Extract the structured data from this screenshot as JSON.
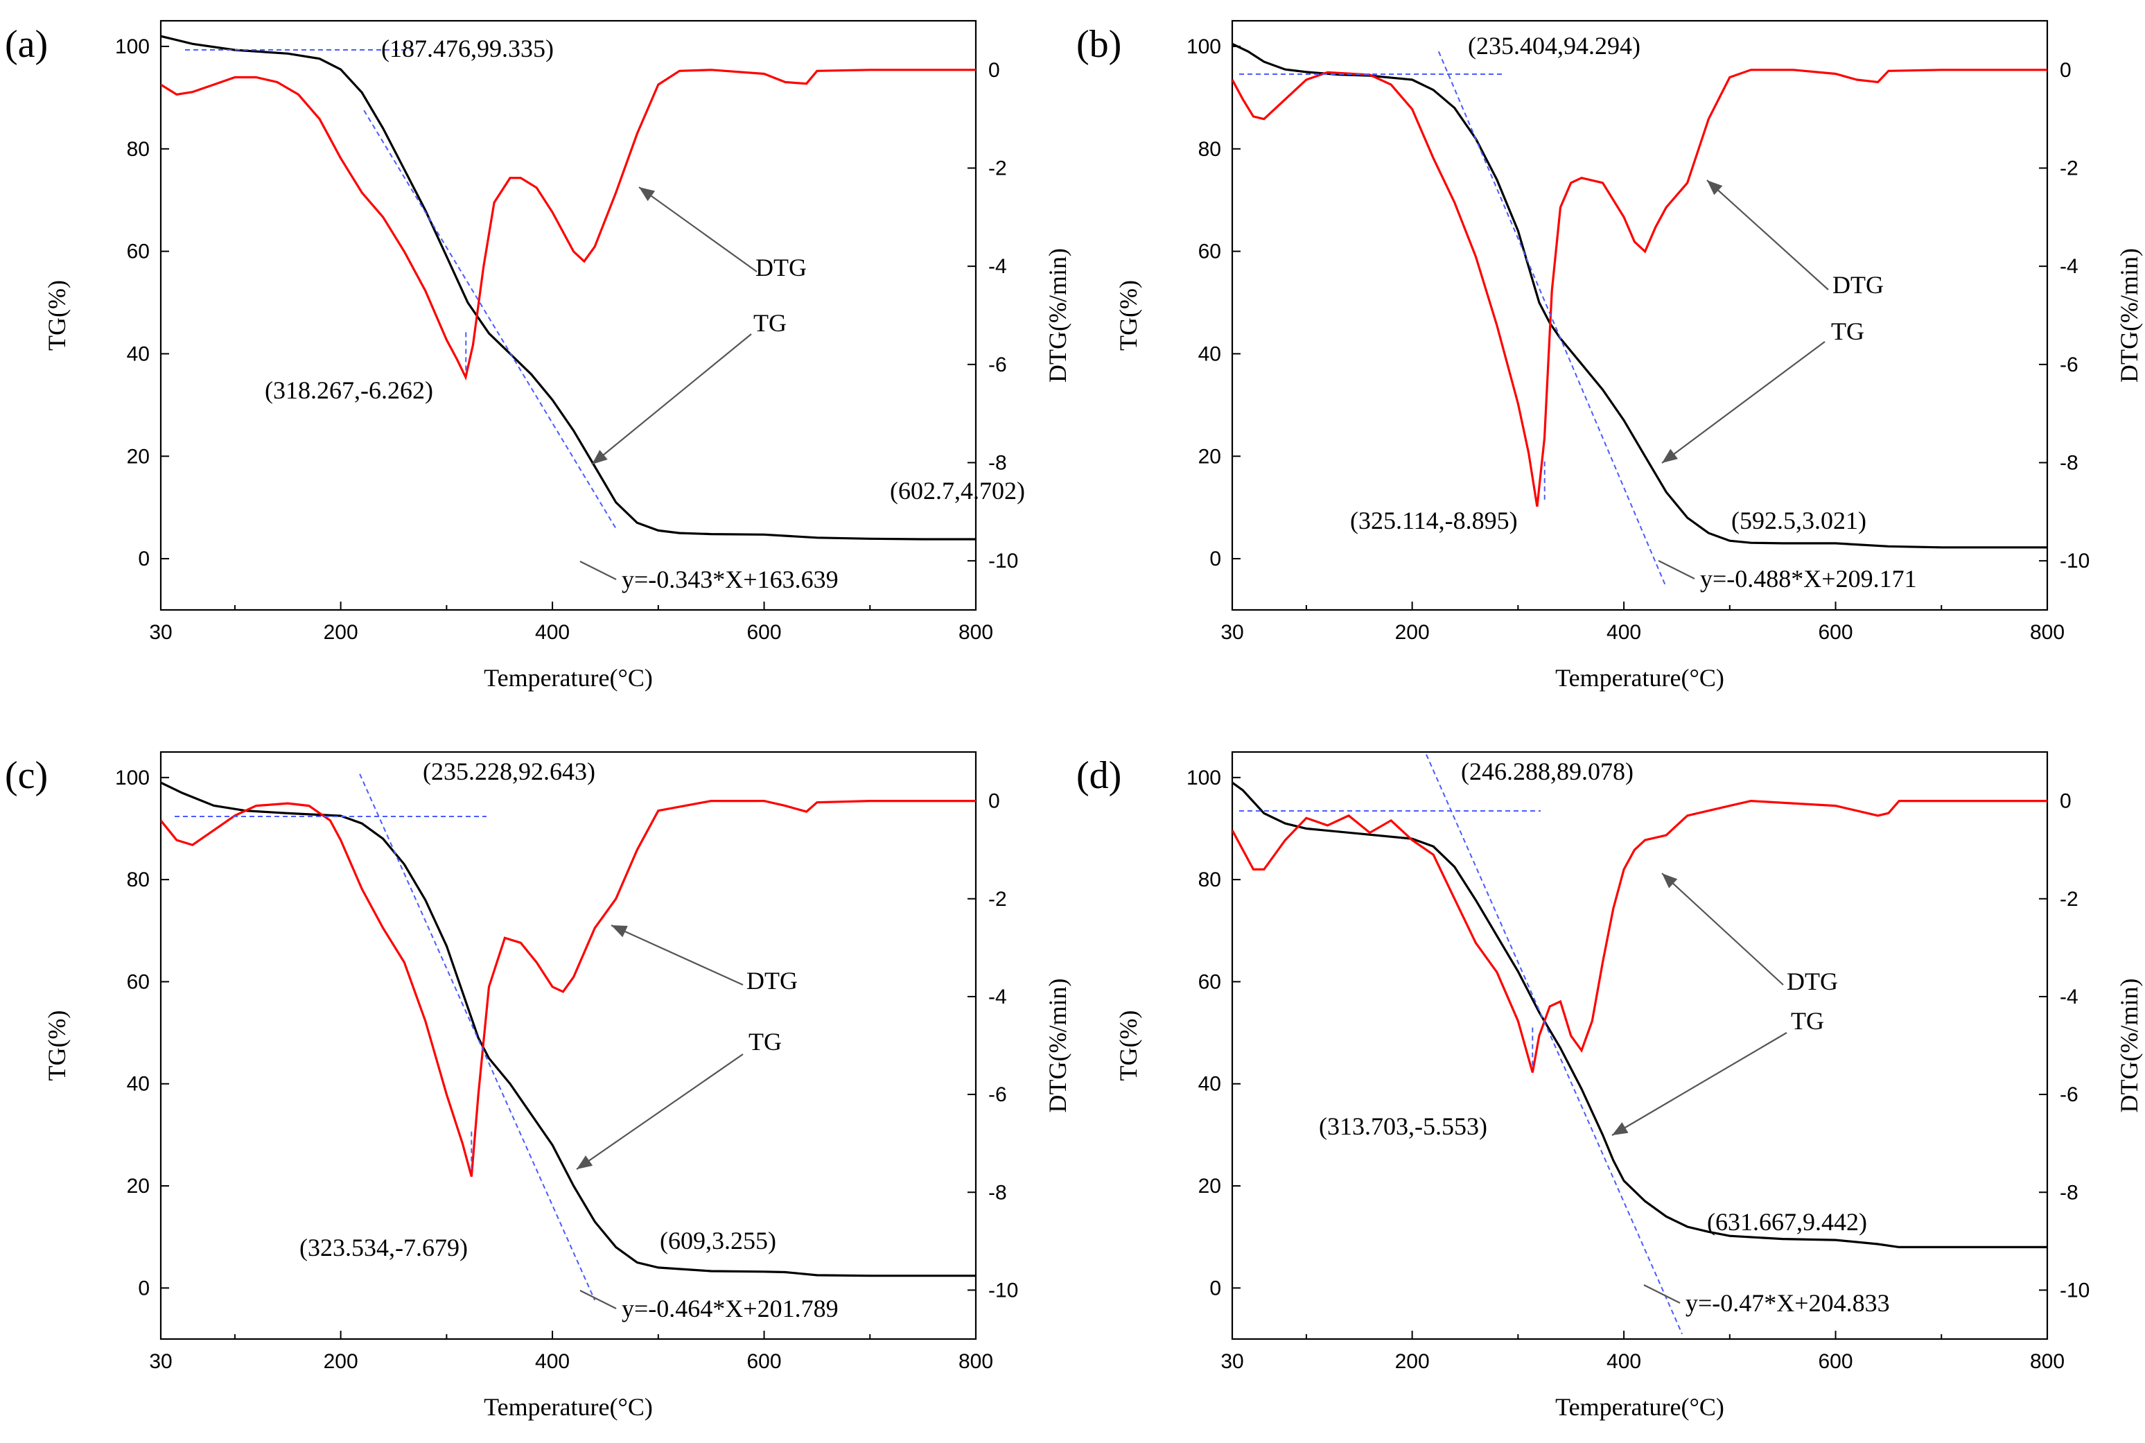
{
  "colors": {
    "tg": "#000000",
    "dtg": "#ff0000",
    "fit": "#4b5cff",
    "arrow": "#555555"
  },
  "chart_data": [
    {
      "type": "line",
      "panel_label": "(a)",
      "xlabel": "Temperature(°C)",
      "ylabel": "TG(%)",
      "y2label": "DTG(%/min)",
      "xlim": [
        30,
        800
      ],
      "ylim": [
        -10,
        105
      ],
      "y2lim": [
        -11,
        1
      ],
      "x_ticks": [
        30,
        200,
        400,
        600,
        800
      ],
      "y_ticks": [
        0,
        20,
        40,
        60,
        80,
        100
      ],
      "y2_ticks": [
        0,
        -2,
        -4,
        -6,
        -8,
        -10
      ],
      "series": [
        {
          "name": "TG",
          "axis": "left",
          "x": [
            30,
            60,
            100,
            150,
            180,
            200,
            220,
            240,
            260,
            280,
            300,
            320,
            340,
            360,
            380,
            400,
            420,
            440,
            460,
            480,
            500,
            520,
            550,
            600,
            650,
            700,
            750,
            800
          ],
          "y": [
            102,
            100.5,
            99.3,
            98.6,
            97.6,
            95.5,
            91,
            84,
            76,
            68,
            59,
            50,
            44,
            40,
            36,
            31,
            25,
            18,
            11,
            7,
            5.5,
            5,
            4.8,
            4.7,
            4.1,
            3.9,
            3.8,
            3.8
          ]
        },
        {
          "name": "DTG",
          "axis": "right",
          "x": [
            30,
            45,
            60,
            80,
            100,
            120,
            140,
            160,
            180,
            200,
            220,
            240,
            260,
            280,
            300,
            310,
            318,
            325,
            335,
            345,
            360,
            370,
            385,
            400,
            420,
            430,
            440,
            460,
            480,
            500,
            520,
            550,
            600,
            620,
            640,
            650,
            700,
            800
          ],
          "y": [
            -0.3,
            -0.5,
            -0.45,
            -0.3,
            -0.15,
            -0.15,
            -0.25,
            -0.5,
            -1.0,
            -1.8,
            -2.5,
            -3.0,
            -3.7,
            -4.5,
            -5.5,
            -5.9,
            -6.26,
            -5.6,
            -4.0,
            -2.7,
            -2.2,
            -2.2,
            -2.4,
            -2.9,
            -3.7,
            -3.9,
            -3.6,
            -2.5,
            -1.3,
            -0.3,
            -0.02,
            0.0,
            -0.08,
            -0.25,
            -0.28,
            -0.02,
            0.0,
            0.0
          ]
        },
        {
          "name": "fit",
          "axis": "left",
          "x": [
            222,
            460
          ],
          "y": [
            87.5,
            5.9
          ]
        }
      ],
      "annotations": [
        {
          "text": "(187.476,99.335)",
          "x": 187.476,
          "y": 99.335,
          "axis": "left"
        },
        {
          "text": "(318.267,-6.262)",
          "x": 318.267,
          "y": -6.262,
          "axis": "right"
        },
        {
          "text": "(602.7,4.702)",
          "x": 602.7,
          "y": 4.702,
          "axis": "left"
        },
        {
          "text": "y=-0.343*X+163.639"
        },
        {
          "text": "DTG"
        },
        {
          "text": "TG"
        }
      ]
    },
    {
      "type": "line",
      "panel_label": "(b)",
      "xlabel": "Temperature(°C)",
      "ylabel": "TG(%)",
      "y2label": "DTG(%/min)",
      "xlim": [
        30,
        800
      ],
      "ylim": [
        -10,
        105
      ],
      "y2lim": [
        -11,
        1
      ],
      "x_ticks": [
        30,
        200,
        400,
        600,
        800
      ],
      "y_ticks": [
        0,
        20,
        40,
        60,
        80,
        100
      ],
      "y2_ticks": [
        0,
        -2,
        -4,
        -6,
        -8,
        -10
      ],
      "series": [
        {
          "name": "TG",
          "axis": "left",
          "x": [
            30,
            45,
            60,
            80,
            100,
            130,
            160,
            200,
            220,
            240,
            260,
            280,
            300,
            310,
            320,
            330,
            340,
            360,
            380,
            400,
            420,
            440,
            460,
            480,
            500,
            520,
            550,
            600,
            650,
            700,
            800
          ],
          "y": [
            100.5,
            99,
            97,
            95.5,
            95,
            94.5,
            94.3,
            93.5,
            91.5,
            88,
            82,
            74,
            64,
            57,
            50,
            46,
            43,
            38,
            33,
            27,
            20,
            13,
            8,
            5,
            3.5,
            3.1,
            3.0,
            3.0,
            2.4,
            2.2,
            2.2
          ]
        },
        {
          "name": "DTG",
          "axis": "right",
          "x": [
            30,
            40,
            50,
            60,
            80,
            100,
            120,
            160,
            180,
            200,
            220,
            240,
            260,
            280,
            300,
            310,
            318,
            325,
            332,
            340,
            350,
            360,
            380,
            400,
            410,
            420,
            430,
            440,
            460,
            480,
            500,
            520,
            560,
            600,
            620,
            640,
            650,
            700,
            800
          ],
          "y": [
            -0.2,
            -0.6,
            -0.95,
            -1.0,
            -0.6,
            -0.2,
            -0.05,
            -0.1,
            -0.3,
            -0.8,
            -1.8,
            -2.7,
            -3.8,
            -5.2,
            -6.8,
            -7.8,
            -8.895,
            -7.5,
            -4.5,
            -2.8,
            -2.3,
            -2.2,
            -2.3,
            -3.0,
            -3.5,
            -3.7,
            -3.2,
            -2.8,
            -2.3,
            -1.0,
            -0.15,
            0.0,
            0.0,
            -0.08,
            -0.2,
            -0.25,
            -0.02,
            0.0,
            0.0
          ]
        },
        {
          "name": "fit",
          "axis": "left",
          "x": [
            225,
            440
          ],
          "y": [
            99,
            -5.6
          ]
        }
      ],
      "annotations": [
        {
          "text": "(235.404,94.294)",
          "x": 235.404,
          "y": 94.294,
          "axis": "left"
        },
        {
          "text": "(325.114,-8.895)",
          "x": 325.114,
          "y": -8.895,
          "axis": "right"
        },
        {
          "text": "(592.5,3.021)",
          "x": 592.5,
          "y": 3.021,
          "axis": "left"
        },
        {
          "text": "y=-0.488*X+209.171"
        },
        {
          "text": "DTG"
        },
        {
          "text": "TG"
        }
      ]
    },
    {
      "type": "line",
      "panel_label": "(c)",
      "xlabel": "Temperature(°C)",
      "ylabel": "TG(%)",
      "y2label": "DTG(%/min)",
      "xlim": [
        30,
        800
      ],
      "ylim": [
        -10,
        105
      ],
      "y2lim": [
        -11,
        1
      ],
      "x_ticks": [
        30,
        200,
        400,
        600,
        800
      ],
      "y_ticks": [
        0,
        20,
        40,
        60,
        80,
        100
      ],
      "y2_ticks": [
        0,
        -2,
        -4,
        -6,
        -8,
        -10
      ],
      "series": [
        {
          "name": "TG",
          "axis": "left",
          "x": [
            30,
            50,
            80,
            110,
            150,
            200,
            220,
            240,
            260,
            280,
            300,
            320,
            330,
            340,
            360,
            380,
            400,
            420,
            440,
            460,
            480,
            500,
            550,
            600,
            620,
            650,
            700,
            800
          ],
          "y": [
            99,
            97,
            94.5,
            93.5,
            93,
            92.5,
            91,
            88,
            83,
            76,
            67,
            55,
            49,
            45,
            40,
            34,
            28,
            20,
            13,
            8,
            5,
            4,
            3.3,
            3.2,
            3.1,
            2.5,
            2.4,
            2.4
          ]
        },
        {
          "name": "DTG",
          "axis": "right",
          "x": [
            30,
            45,
            60,
            80,
            100,
            120,
            150,
            170,
            190,
            200,
            220,
            240,
            260,
            280,
            300,
            315,
            323.5,
            330,
            340,
            355,
            370,
            385,
            400,
            410,
            420,
            440,
            460,
            480,
            500,
            550,
            600,
            620,
            640,
            650,
            700,
            800
          ],
          "y": [
            -0.4,
            -0.8,
            -0.9,
            -0.6,
            -0.3,
            -0.1,
            -0.05,
            -0.1,
            -0.4,
            -0.8,
            -1.8,
            -2.6,
            -3.3,
            -4.5,
            -6.0,
            -7.0,
            -7.679,
            -6.0,
            -3.8,
            -2.8,
            -2.9,
            -3.3,
            -3.8,
            -3.9,
            -3.6,
            -2.6,
            -2.0,
            -1.0,
            -0.2,
            0.0,
            0.0,
            -0.1,
            -0.22,
            -0.03,
            0.0,
            0.0
          ]
        },
        {
          "name": "fit",
          "axis": "left",
          "x": [
            218,
            440
          ],
          "y": [
            100.7,
            -2.4
          ]
        }
      ],
      "annotations": [
        {
          "text": "(235.228,92.643)",
          "x": 235.228,
          "y": 92.643,
          "axis": "left"
        },
        {
          "text": "(323.534,-7.679)",
          "x": 323.534,
          "y": -7.679,
          "axis": "right"
        },
        {
          "text": "(609,3.255)",
          "x": 609,
          "y": 3.255,
          "axis": "left"
        },
        {
          "text": "y=-0.464*X+201.789"
        },
        {
          "text": "DTG"
        },
        {
          "text": "TG"
        }
      ]
    },
    {
      "type": "line",
      "panel_label": "(d)",
      "xlabel": "Temperature(°C)",
      "ylabel": "TG(%)",
      "y2label": "DTG(%/min)",
      "xlim": [
        30,
        800
      ],
      "ylim": [
        -10,
        105
      ],
      "y2lim": [
        -11,
        1
      ],
      "x_ticks": [
        30,
        200,
        400,
        600,
        800
      ],
      "y_ticks": [
        0,
        20,
        40,
        60,
        80,
        100
      ],
      "y2_ticks": [
        0,
        -2,
        -4,
        -6,
        -8,
        -10
      ],
      "series": [
        {
          "name": "TG",
          "axis": "left",
          "x": [
            30,
            40,
            60,
            80,
            100,
            150,
            200,
            220,
            240,
            260,
            280,
            300,
            320,
            340,
            360,
            380,
            390,
            400,
            420,
            440,
            460,
            480,
            500,
            550,
            600,
            640,
            660,
            700,
            800
          ],
          "y": [
            99,
            97.5,
            93,
            91,
            90,
            89,
            88,
            86.5,
            82.5,
            76,
            69,
            62,
            54,
            47,
            39,
            30,
            25,
            21,
            17,
            14,
            12,
            11,
            10.2,
            9.6,
            9.4,
            8.6,
            8.0,
            8.0,
            8.0
          ]
        },
        {
          "name": "DTG",
          "axis": "right",
          "x": [
            30,
            40,
            50,
            60,
            80,
            100,
            120,
            140,
            160,
            180,
            200,
            220,
            240,
            260,
            280,
            300,
            313.7,
            320,
            330,
            340,
            350,
            360,
            370,
            380,
            390,
            400,
            410,
            420,
            440,
            460,
            480,
            500,
            520,
            560,
            600,
            640,
            650,
            660,
            700,
            800
          ],
          "y": [
            -0.6,
            -1.0,
            -1.4,
            -1.4,
            -0.8,
            -0.35,
            -0.5,
            -0.3,
            -0.65,
            -0.4,
            -0.8,
            -1.1,
            -2.0,
            -2.9,
            -3.5,
            -4.5,
            -5.553,
            -4.8,
            -4.2,
            -4.1,
            -4.8,
            -5.1,
            -4.5,
            -3.3,
            -2.2,
            -1.4,
            -1.0,
            -0.8,
            -0.7,
            -0.3,
            -0.2,
            -0.1,
            0.0,
            -0.05,
            -0.1,
            -0.3,
            -0.25,
            0.0,
            0.0,
            0.0
          ]
        },
        {
          "name": "fit",
          "axis": "left",
          "x": [
            207,
            455
          ],
          "y": [
            107.5,
            -9.0
          ]
        }
      ],
      "annotations": [
        {
          "text": "(246.288,89.078)",
          "x": 246.288,
          "y": 89.078,
          "axis": "left"
        },
        {
          "text": "(313.703,-5.553)",
          "x": 313.703,
          "y": -5.553,
          "axis": "right"
        },
        {
          "text": "(631.667,9.442)",
          "x": 631.667,
          "y": 9.442,
          "axis": "left"
        },
        {
          "text": "y=-0.47*X+204.833"
        },
        {
          "text": "DTG"
        },
        {
          "text": "TG"
        }
      ]
    }
  ]
}
